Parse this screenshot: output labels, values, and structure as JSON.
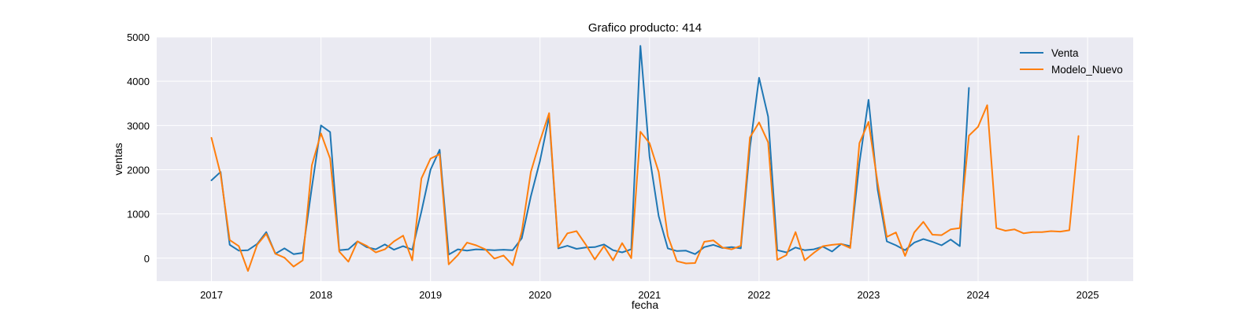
{
  "chart_data": {
    "type": "line",
    "title": "Grafico producto: 414",
    "xlabel": "fecha",
    "ylabel": "ventas",
    "xlim": [
      "2016-07",
      "2025-06"
    ],
    "ylim": [
      -520,
      5000
    ],
    "x_ticks": [
      "2017",
      "2018",
      "2019",
      "2020",
      "2021",
      "2022",
      "2023",
      "2024",
      "2025"
    ],
    "y_ticks": [
      0,
      1000,
      2000,
      3000,
      4000,
      5000
    ],
    "grid": true,
    "legend": "top-right",
    "background": "#eaeaf2",
    "series": [
      {
        "name": "Venta",
        "color": "#1f77b4",
        "start": "2017-01",
        "values": [
          1760,
          1950,
          300,
          170,
          180,
          320,
          590,
          100,
          220,
          90,
          120,
          1600,
          3000,
          2850,
          180,
          200,
          380,
          250,
          200,
          310,
          190,
          270,
          190,
          1050,
          2000,
          2450,
          80,
          200,
          170,
          200,
          190,
          180,
          190,
          180,
          450,
          1400,
          2200,
          3200,
          220,
          280,
          210,
          240,
          250,
          310,
          180,
          130,
          200,
          4800,
          2300,
          950,
          220,
          160,
          170,
          90,
          250,
          300,
          230,
          250,
          220,
          2500,
          4080,
          3200,
          180,
          130,
          240,
          180,
          200,
          260,
          150,
          320,
          270,
          2150,
          3580,
          1550,
          380,
          290,
          180,
          350,
          430,
          370,
          290,
          420,
          270,
          3850
        ]
      },
      {
        "name": "Modelo_Nuevo",
        "color": "#ff7f0e",
        "start": "2017-01",
        "values": [
          2720,
          1900,
          410,
          270,
          -290,
          300,
          550,
          100,
          10,
          -190,
          -50,
          2100,
          2820,
          2250,
          150,
          -80,
          380,
          280,
          130,
          200,
          380,
          510,
          -50,
          1800,
          2250,
          2350,
          -140,
          70,
          350,
          290,
          200,
          -10,
          60,
          -160,
          600,
          1950,
          2650,
          3280,
          250,
          560,
          610,
          310,
          -30,
          270,
          -50,
          340,
          0,
          2860,
          2600,
          1950,
          500,
          -70,
          -120,
          -110,
          370,
          400,
          240,
          200,
          280,
          2730,
          3070,
          2620,
          -40,
          70,
          590,
          -50,
          120,
          270,
          300,
          320,
          230,
          2600,
          3080,
          1700,
          480,
          580,
          50,
          580,
          820,
          530,
          520,
          650,
          680,
          2770,
          2970,
          3460,
          680,
          620,
          650,
          560,
          590,
          590,
          610,
          600,
          630,
          2760
        ]
      }
    ]
  }
}
